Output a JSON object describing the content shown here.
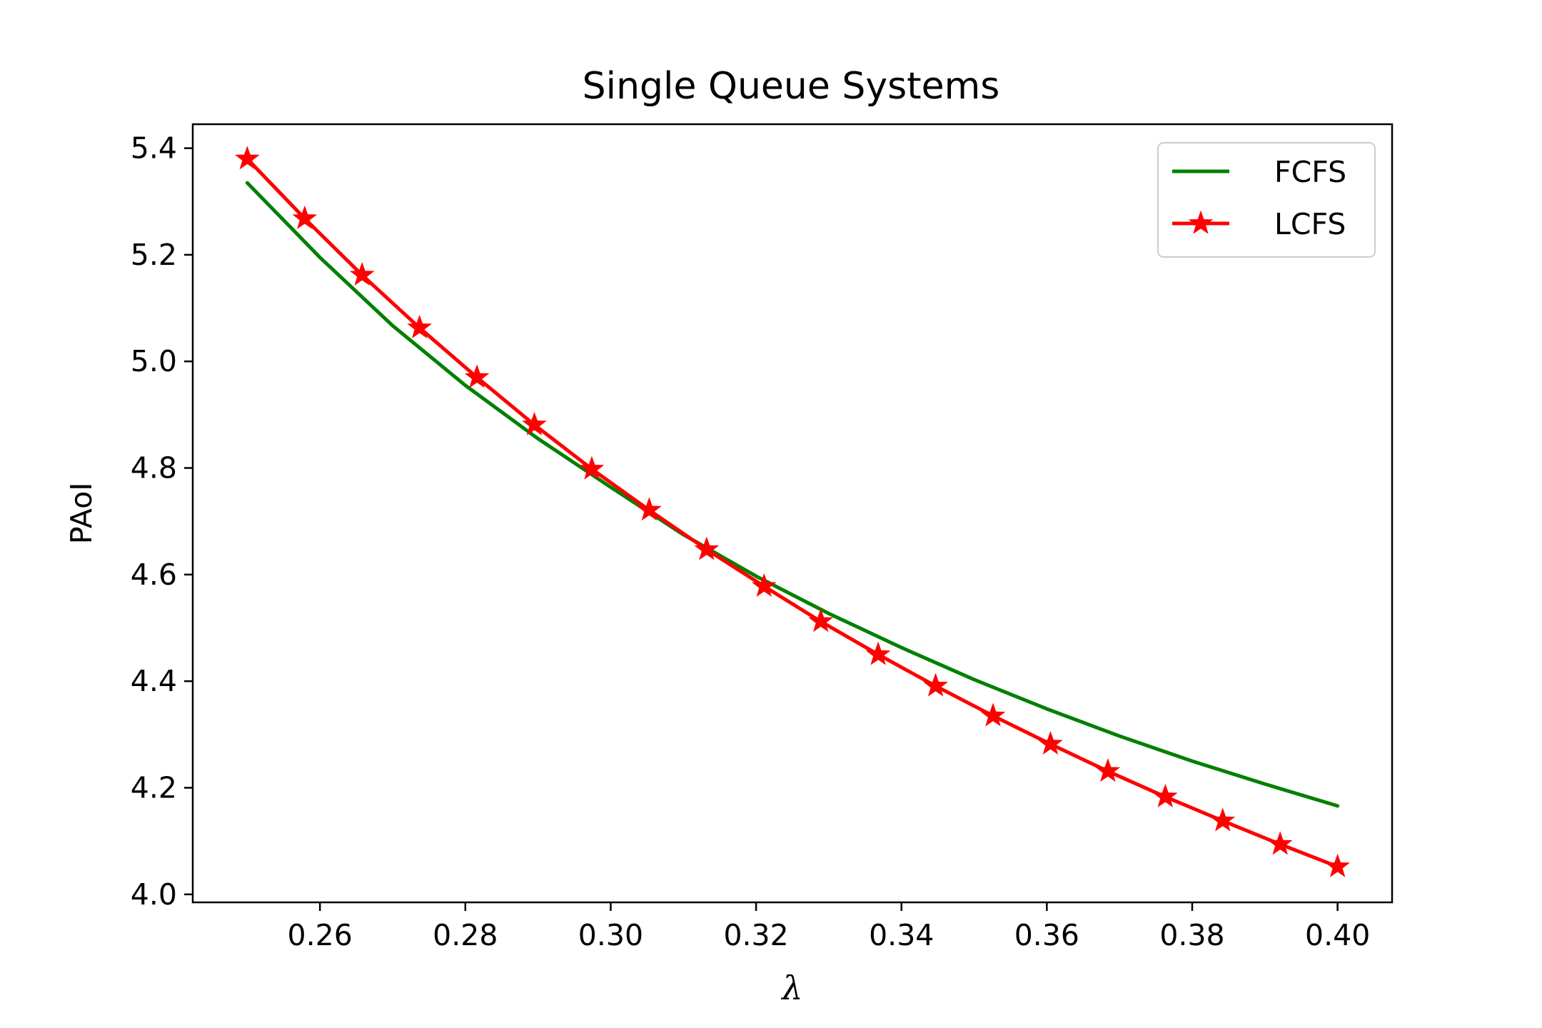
{
  "chart_data": {
    "type": "line",
    "title": "Single Queue Systems",
    "xlabel": "λ",
    "ylabel": "PAoI",
    "xlim": [
      0.2425,
      0.4075
    ],
    "ylim": [
      3.985,
      5.445
    ],
    "xticks": [
      0.26,
      0.28,
      0.3,
      0.32,
      0.34,
      0.36,
      0.38,
      0.4
    ],
    "xtick_labels": [
      "0.26",
      "0.28",
      "0.30",
      "0.32",
      "0.34",
      "0.36",
      "0.38",
      "0.40"
    ],
    "yticks": [
      4.0,
      4.2,
      4.4,
      4.6,
      4.8,
      5.0,
      5.2,
      5.4
    ],
    "ytick_labels": [
      "4.0",
      "4.2",
      "4.4",
      "4.6",
      "4.8",
      "5.0",
      "5.2",
      "5.4"
    ],
    "grid": false,
    "legend_position": "top-right",
    "series": [
      {
        "name": "FCFS",
        "color": "#008000",
        "marker": "none",
        "x": [
          0.25,
          0.26,
          0.27,
          0.28,
          0.29,
          0.3,
          0.31,
          0.32,
          0.33,
          0.34,
          0.35,
          0.36,
          0.37,
          0.38,
          0.39,
          0.4
        ],
        "y": [
          5.335,
          5.195,
          5.067,
          4.955,
          4.855,
          4.764,
          4.675,
          4.597,
          4.527,
          4.463,
          4.403,
          4.348,
          4.297,
          4.25,
          4.207,
          4.166
        ]
      },
      {
        "name": "LCFS",
        "color": "#ff0000",
        "marker": "star",
        "x": [
          0.25,
          0.2579,
          0.2658,
          0.2737,
          0.2816,
          0.2895,
          0.2974,
          0.3053,
          0.3132,
          0.3211,
          0.3289,
          0.3368,
          0.3447,
          0.3526,
          0.3605,
          0.3684,
          0.3763,
          0.3842,
          0.3921,
          0.4
        ],
        "y": [
          5.38,
          5.268,
          5.162,
          5.063,
          4.97,
          4.881,
          4.798,
          4.721,
          4.647,
          4.578,
          4.512,
          4.45,
          4.391,
          4.335,
          4.282,
          4.231,
          4.183,
          4.138,
          4.094,
          4.052
        ]
      }
    ]
  }
}
